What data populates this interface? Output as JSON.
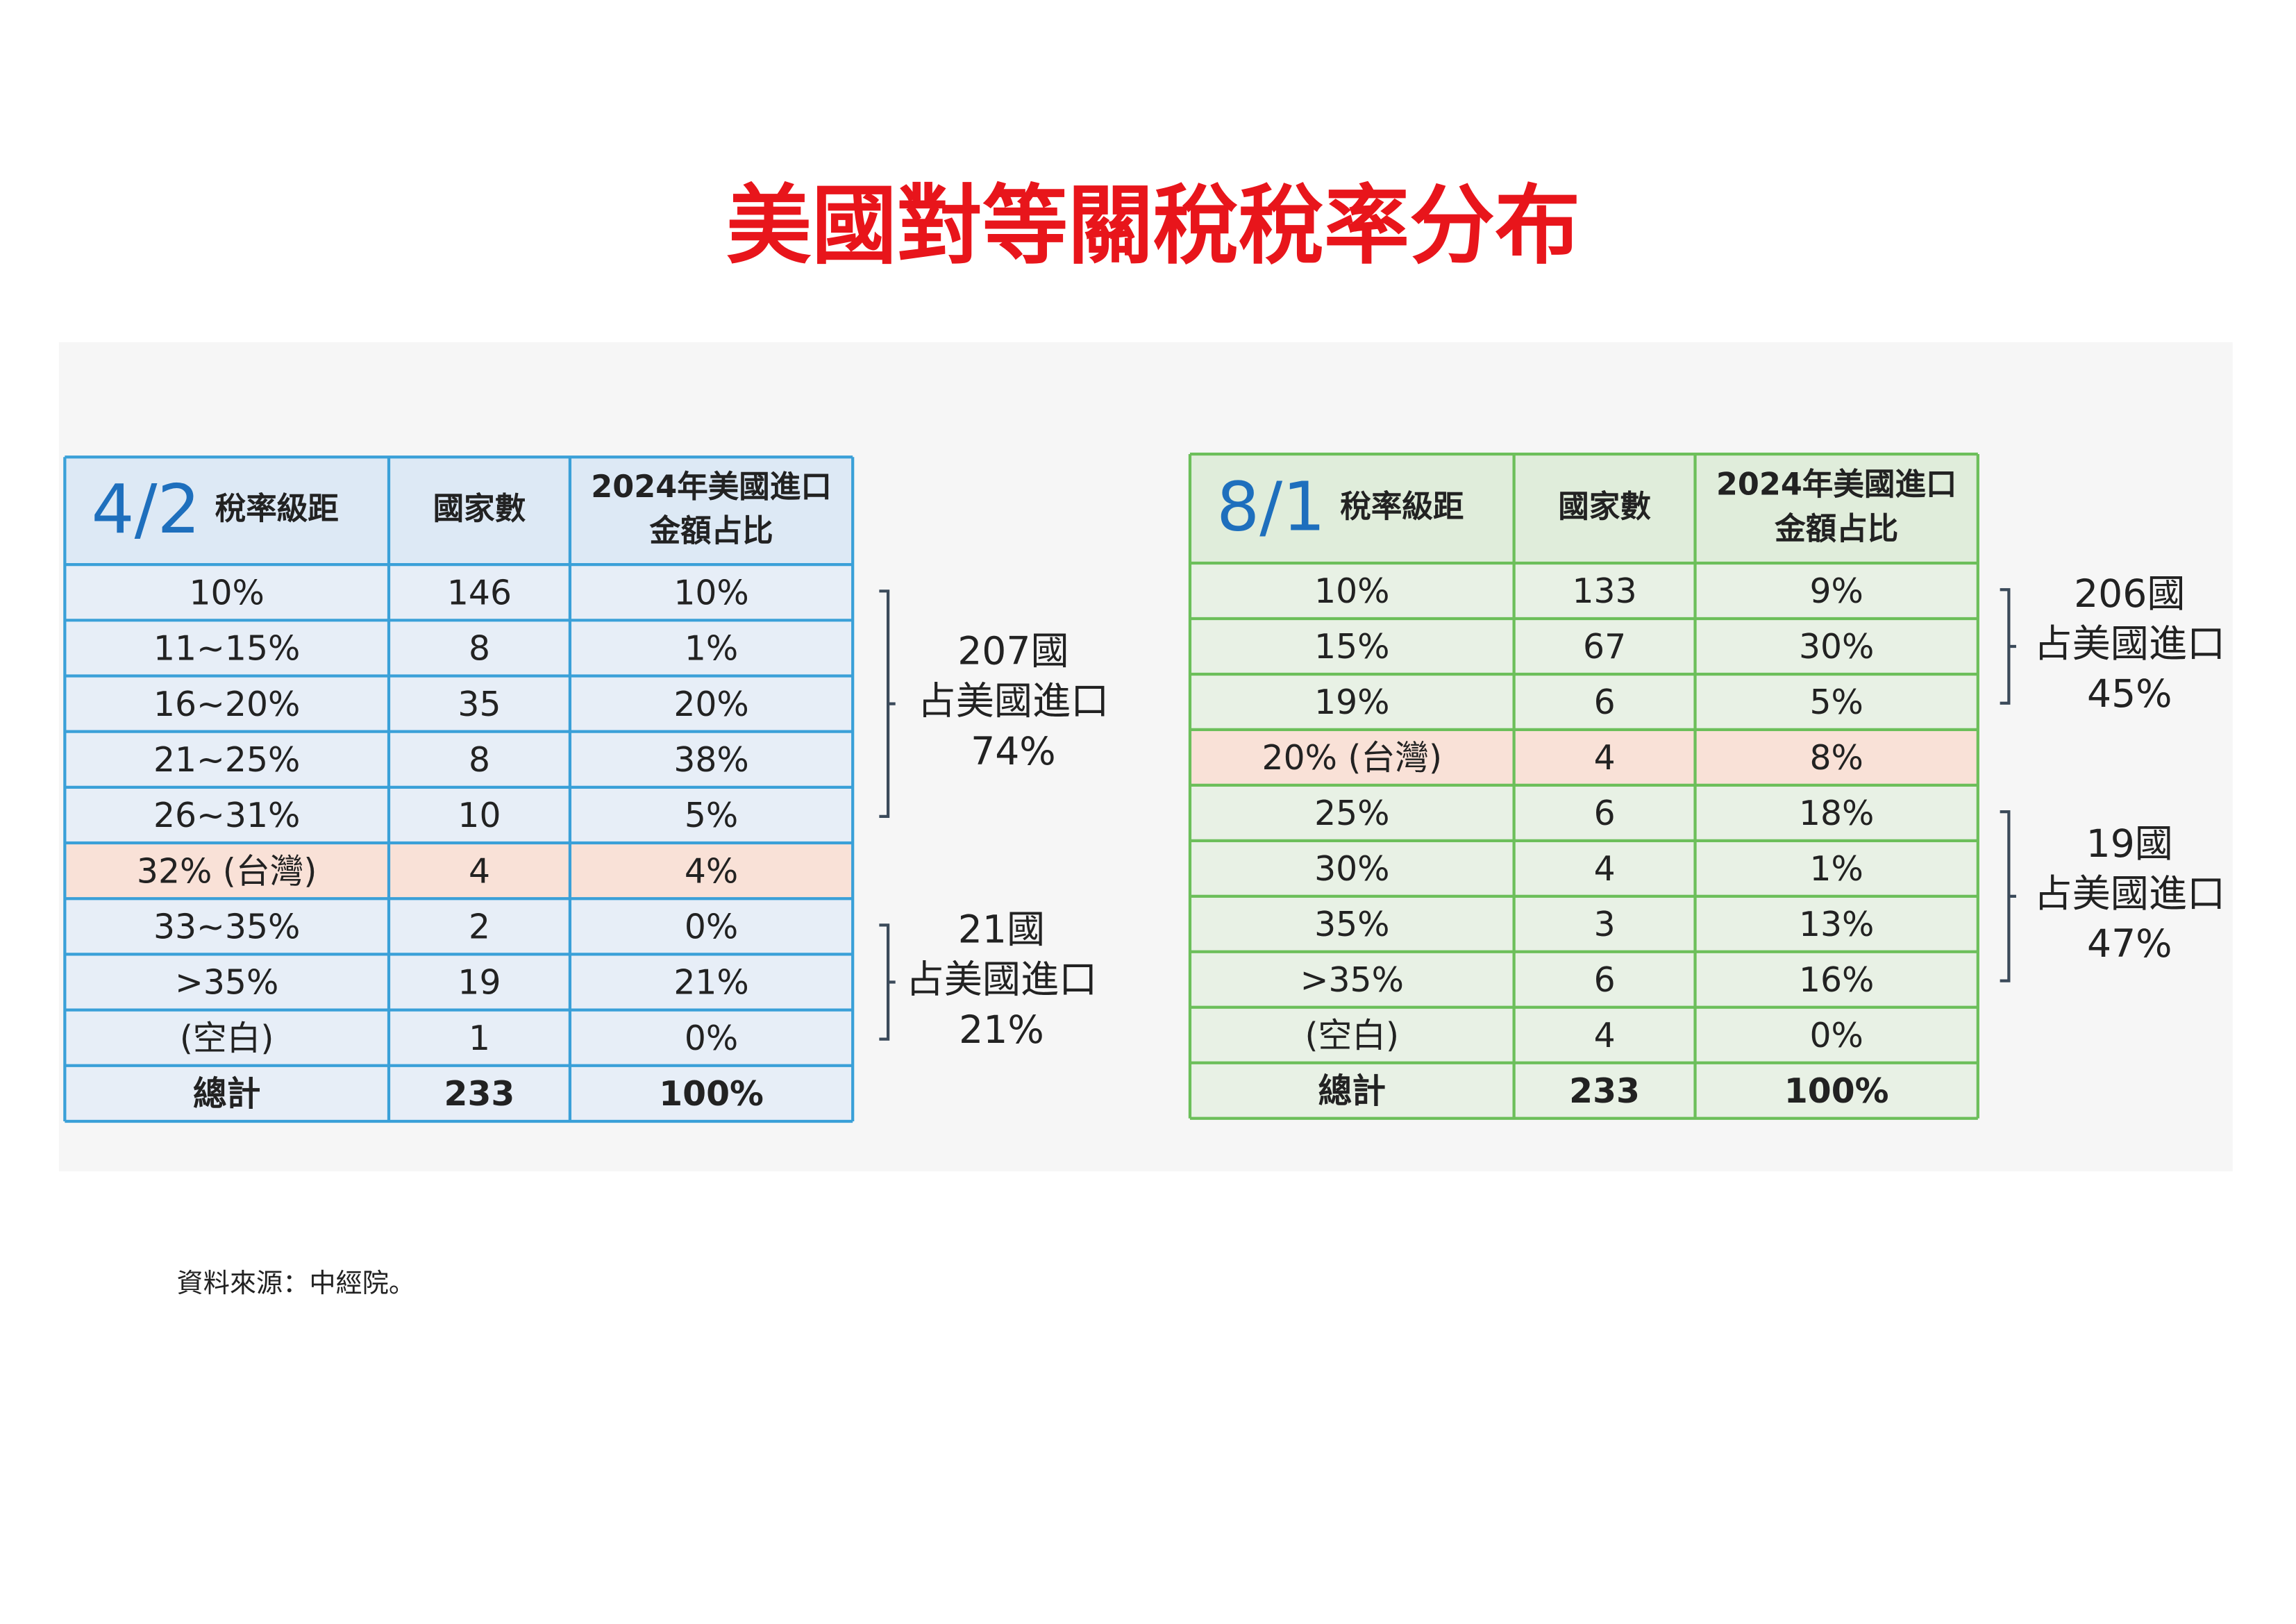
{
  "title": "美國對等關稅稅率分布",
  "tables": [
    {
      "date": "4/2",
      "headers": [
        "稅率級距",
        "國家數",
        [
          "2024年美國進口",
          "金額占比"
        ]
      ],
      "rows": [
        [
          "10%",
          "146",
          "10%"
        ],
        [
          "11~15%",
          "8",
          "1%"
        ],
        [
          "16~20%",
          "35",
          "20%"
        ],
        [
          "21~25%",
          "8",
          "38%"
        ],
        [
          "26~31%",
          "10",
          "5%"
        ],
        [
          "32% (台灣)",
          "4",
          "4%"
        ],
        [
          "33~35%",
          "2",
          "0%"
        ],
        [
          ">35%",
          "19",
          "21%"
        ],
        [
          "(空白)",
          "1",
          "0%"
        ]
      ],
      "total": [
        "總計",
        "233",
        "100%"
      ],
      "highlight_row": 5,
      "annotations": [
        [
          "207國",
          "占美國進口",
          "74%"
        ],
        [
          "21國",
          "占美國進口",
          "21%"
        ]
      ]
    },
    {
      "date": "8/1",
      "headers": [
        "稅率級距",
        "國家數",
        [
          "2024年美國進口",
          "金額占比"
        ]
      ],
      "rows": [
        [
          "10%",
          "133",
          "9%"
        ],
        [
          "15%",
          "67",
          "30%"
        ],
        [
          "19%",
          "6",
          "5%"
        ],
        [
          "20% (台灣)",
          "4",
          "8%"
        ],
        [
          "25%",
          "6",
          "18%"
        ],
        [
          "30%",
          "4",
          "1%"
        ],
        [
          "35%",
          "3",
          "13%"
        ],
        [
          ">35%",
          "6",
          "16%"
        ],
        [
          "(空白)",
          "4",
          "0%"
        ]
      ],
      "total": [
        "總計",
        "233",
        "100%"
      ],
      "highlight_row": 3,
      "annotations": [
        [
          "206國",
          "占美國進口",
          "45%"
        ],
        [
          "19國",
          "占美國進口",
          "47%"
        ]
      ]
    }
  ],
  "source": "資料來源：中經院。"
}
